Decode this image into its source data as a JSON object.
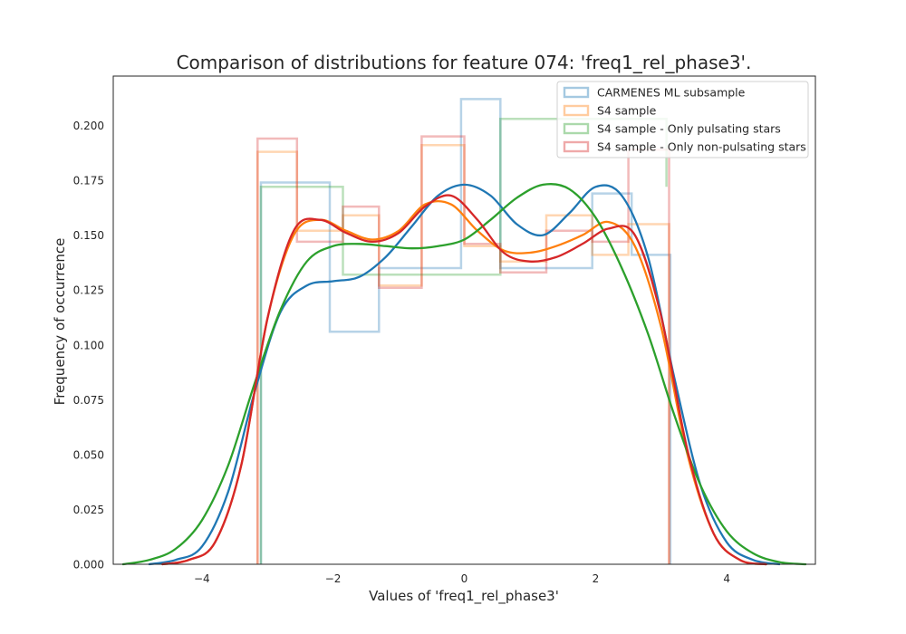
{
  "chart_data": {
    "type": "histogram",
    "title": "Comparison of distributions for feature 074: 'freq1_rel_phase3'.",
    "xlabel": "Values of 'freq1_rel_phase3'",
    "ylabel": "Frequency of occurrence",
    "xlim": [
      -5.35,
      5.35
    ],
    "ylim": [
      0.0,
      0.2225
    ],
    "xticks": [
      -4,
      -2,
      0,
      2,
      4
    ],
    "xtick_labels": [
      "−4",
      "−2",
      "0",
      "2",
      "4"
    ],
    "yticks": [
      0.0,
      0.025,
      0.05,
      0.075,
      0.1,
      0.125,
      0.15,
      0.175,
      0.2
    ],
    "ytick_labels": [
      "0.000",
      "0.025",
      "0.050",
      "0.075",
      "0.100",
      "0.125",
      "0.150",
      "0.175",
      "0.200"
    ],
    "grid": false,
    "legend_position": "top-right",
    "series": [
      {
        "name": "CARMENES ML subsample",
        "color": "#1f77b4",
        "hist_edges": [
          -3.1,
          -2.05,
          -1.3,
          -0.65,
          -0.05,
          0.55,
          1.3,
          1.95,
          2.55,
          3.14
        ],
        "hist_values": [
          0.174,
          0.106,
          0.135,
          0.135,
          0.212,
          0.135,
          0.135,
          0.169,
          0.141
        ],
        "kde_x": [
          -4.8,
          -4.4,
          -4.0,
          -3.6,
          -3.2,
          -2.8,
          -2.4,
          -2.0,
          -1.6,
          -1.2,
          -0.8,
          -0.4,
          0.0,
          0.4,
          0.8,
          1.2,
          1.6,
          2.0,
          2.4,
          2.8,
          3.2,
          3.6,
          4.0,
          4.4,
          4.8
        ],
        "kde_y": [
          0.0,
          0.002,
          0.008,
          0.033,
          0.078,
          0.115,
          0.127,
          0.129,
          0.131,
          0.14,
          0.154,
          0.168,
          0.173,
          0.168,
          0.155,
          0.15,
          0.16,
          0.172,
          0.168,
          0.14,
          0.085,
          0.036,
          0.01,
          0.002,
          0.0
        ]
      },
      {
        "name": "S4 sample",
        "color": "#ff7f0e",
        "hist_edges": [
          -3.15,
          -2.55,
          -1.85,
          -1.3,
          -0.65,
          0.0,
          0.55,
          1.25,
          1.95,
          2.5,
          3.12
        ],
        "hist_values": [
          0.188,
          0.152,
          0.159,
          0.127,
          0.191,
          0.145,
          0.138,
          0.159,
          0.141,
          0.155
        ],
        "kde_x": [
          -4.6,
          -4.2,
          -3.8,
          -3.4,
          -3.0,
          -2.6,
          -2.2,
          -1.8,
          -1.4,
          -1.0,
          -0.6,
          -0.2,
          0.2,
          0.6,
          1.0,
          1.4,
          1.8,
          2.2,
          2.6,
          3.0,
          3.4,
          3.8,
          4.2,
          4.6
        ],
        "kde_y": [
          0.0,
          0.002,
          0.01,
          0.045,
          0.112,
          0.15,
          0.157,
          0.152,
          0.148,
          0.152,
          0.164,
          0.164,
          0.152,
          0.143,
          0.142,
          0.145,
          0.15,
          0.156,
          0.145,
          0.108,
          0.05,
          0.014,
          0.002,
          0.0
        ]
      },
      {
        "name": "S4 sample - Only pulsating stars",
        "color": "#2ca02c",
        "hist_edges": [
          -3.1,
          -1.85,
          0.55,
          3.08
        ],
        "hist_values": [
          0.172,
          0.132,
          0.203,
          0.172
        ],
        "kde_x": [
          -5.2,
          -4.8,
          -4.4,
          -4.0,
          -3.6,
          -3.2,
          -2.8,
          -2.4,
          -2.0,
          -1.6,
          -1.2,
          -0.8,
          -0.4,
          0.0,
          0.4,
          0.8,
          1.2,
          1.6,
          2.0,
          2.4,
          2.8,
          3.2,
          3.6,
          4.0,
          4.4,
          4.8,
          5.2
        ],
        "kde_y": [
          0.0,
          0.002,
          0.007,
          0.02,
          0.045,
          0.082,
          0.116,
          0.138,
          0.145,
          0.146,
          0.145,
          0.144,
          0.145,
          0.148,
          0.157,
          0.167,
          0.173,
          0.171,
          0.158,
          0.135,
          0.105,
          0.068,
          0.036,
          0.015,
          0.005,
          0.001,
          0.0
        ]
      },
      {
        "name": "S4 sample - Only non-pulsating stars",
        "color": "#d62728",
        "hist_edges": [
          -3.15,
          -2.55,
          -1.85,
          -1.3,
          -0.65,
          0.0,
          0.55,
          1.25,
          1.95,
          2.5,
          3.12
        ],
        "hist_values": [
          0.194,
          0.147,
          0.163,
          0.126,
          0.195,
          0.146,
          0.133,
          0.152,
          0.147,
          0.189
        ],
        "kde_x": [
          -4.6,
          -4.2,
          -3.8,
          -3.4,
          -3.0,
          -2.6,
          -2.2,
          -1.8,
          -1.4,
          -1.0,
          -0.6,
          -0.2,
          0.2,
          0.6,
          1.0,
          1.4,
          1.8,
          2.2,
          2.6,
          3.0,
          3.4,
          3.8,
          4.2,
          4.6
        ],
        "kde_y": [
          0.0,
          0.002,
          0.01,
          0.045,
          0.112,
          0.152,
          0.157,
          0.151,
          0.147,
          0.151,
          0.163,
          0.168,
          0.157,
          0.142,
          0.138,
          0.14,
          0.146,
          0.153,
          0.15,
          0.113,
          0.052,
          0.014,
          0.002,
          0.0
        ]
      }
    ]
  }
}
